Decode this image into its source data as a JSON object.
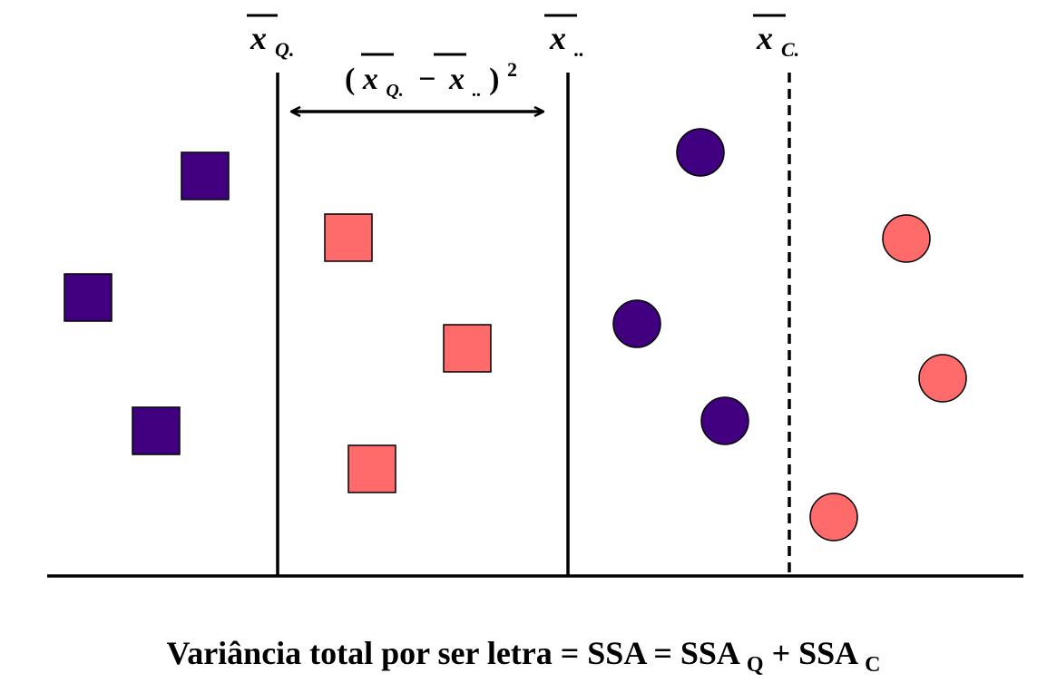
{
  "colors": {
    "dark": "#41007F",
    "light": "#FF6B6B",
    "line": "#000000"
  },
  "means": [
    {
      "var": "x",
      "sub": "Q.",
      "style": "solid"
    },
    {
      "var": "x",
      "sub": "..",
      "style": "solid"
    },
    {
      "var": "x",
      "sub": "C.",
      "style": "dashed"
    }
  ],
  "difference_label": {
    "open": "(",
    "var_a": "x",
    "sub_a": "Q.",
    "minus": "−",
    "var_b": "x",
    "sub_b": "..",
    "close": ")",
    "power": "2"
  },
  "points": {
    "squares": [
      {
        "group": "dark"
      },
      {
        "group": "dark"
      },
      {
        "group": "dark"
      },
      {
        "group": "light"
      },
      {
        "group": "light"
      },
      {
        "group": "light"
      }
    ],
    "circles": [
      {
        "group": "dark"
      },
      {
        "group": "dark"
      },
      {
        "group": "dark"
      },
      {
        "group": "light"
      },
      {
        "group": "light"
      },
      {
        "group": "light"
      }
    ]
  },
  "caption": {
    "main": "Variância total por ser letra = SSA = SSA",
    "sub1": "Q",
    "plus": " + SSA",
    "sub2": "C"
  }
}
